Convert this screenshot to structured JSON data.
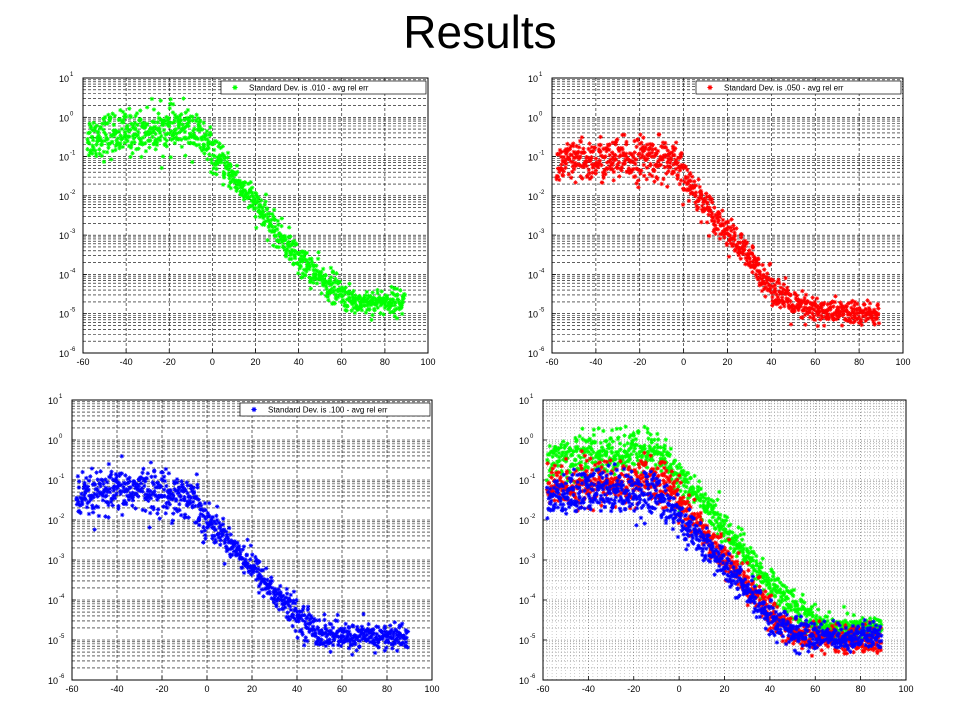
{
  "slide": {
    "title": "Results"
  },
  "chart_data": [
    {
      "type": "scatter",
      "xlim": [
        -60,
        100
      ],
      "ylim": [
        1e-06,
        10
      ],
      "y_scale": "log",
      "x_ticks": [
        -60,
        -40,
        -20,
        0,
        20,
        40,
        60,
        80,
        100
      ],
      "y_ticks": [
        "10^1",
        "10^0",
        "10^-1",
        "10^-2",
        "10^-3",
        "10^-4",
        "10^-5",
        "10^-6"
      ],
      "grid": "dashed-minor",
      "legend_position": "top-right",
      "marker": "*",
      "series": [
        {
          "name": "Standard Dev. is .010 - avg rel err",
          "color": "#00ff00",
          "x": [
            -58,
            -50,
            -40,
            -30,
            -20,
            -10,
            -5,
            0,
            10,
            20,
            30,
            40,
            50,
            60,
            65,
            70,
            80,
            89
          ],
          "y": [
            0.3,
            0.35,
            0.4,
            0.45,
            0.5,
            0.5,
            0.3,
            0.12,
            0.03,
            0.006,
            0.0012,
            0.00025,
            8e-05,
            3e-05,
            2e-05,
            2e-05,
            2e-05,
            2e-05
          ]
        }
      ]
    },
    {
      "type": "scatter",
      "xlim": [
        -60,
        100
      ],
      "ylim": [
        1e-06,
        10
      ],
      "y_scale": "log",
      "x_ticks": [
        -60,
        -40,
        -20,
        0,
        20,
        40,
        60,
        80,
        100
      ],
      "y_ticks": [
        "10^1",
        "10^0",
        "10^-1",
        "10^-2",
        "10^-3",
        "10^-4",
        "10^-5",
        "10^-6"
      ],
      "grid": "dashed-minor",
      "legend_position": "top-right",
      "marker": "*",
      "series": [
        {
          "name": "Standard Dev. is .050 - avg rel err",
          "color": "#ff0000",
          "x": [
            -58,
            -50,
            -40,
            -30,
            -20,
            -10,
            -5,
            0,
            10,
            20,
            30,
            40,
            50,
            60,
            70,
            80,
            89
          ],
          "y": [
            0.06,
            0.07,
            0.08,
            0.08,
            0.09,
            0.09,
            0.07,
            0.03,
            0.006,
            0.0012,
            0.00025,
            5e-05,
            1.5e-05,
            1.2e-05,
            1.1e-05,
            1e-05,
            1e-05
          ]
        }
      ]
    },
    {
      "type": "scatter",
      "xlim": [
        -60,
        100
      ],
      "ylim": [
        1e-06,
        10
      ],
      "y_scale": "log",
      "x_ticks": [
        -60,
        -40,
        -20,
        0,
        20,
        40,
        60,
        80,
        100
      ],
      "y_ticks": [
        "10^1",
        "10^0",
        "10^-1",
        "10^-2",
        "10^-3",
        "10^-4",
        "10^-5",
        "10^-6"
      ],
      "grid": "dashed-minor",
      "legend_position": "top-right",
      "marker": "*",
      "series": [
        {
          "name": "Standard Dev. is .100 - avg rel err",
          "color": "#0000ff",
          "x": [
            -58,
            -50,
            -40,
            -30,
            -20,
            -10,
            -5,
            0,
            10,
            20,
            30,
            40,
            50,
            60,
            70,
            80,
            89
          ],
          "y": [
            0.03,
            0.04,
            0.05,
            0.06,
            0.05,
            0.04,
            0.03,
            0.01,
            0.003,
            0.0007,
            0.00015,
            4e-05,
            1.5e-05,
            1.2e-05,
            1.2e-05,
            1.2e-05,
            1.2e-05
          ]
        }
      ]
    },
    {
      "type": "scatter",
      "xlim": [
        -60,
        100
      ],
      "ylim": [
        1e-06,
        10
      ],
      "y_scale": "log",
      "x_ticks": [
        -60,
        -40,
        -20,
        0,
        20,
        40,
        60,
        80,
        100
      ],
      "y_ticks": [
        "10^1",
        "10^0",
        "10^-1",
        "10^-2",
        "10^-3",
        "10^-4",
        "10^-5",
        "10^-6"
      ],
      "grid": "dotted-minor",
      "legend_position": "none",
      "marker": "*",
      "series": [
        {
          "name": "",
          "color": "#00ff00",
          "x": [
            -58,
            -50,
            -40,
            -30,
            -20,
            -10,
            -5,
            0,
            10,
            20,
            30,
            40,
            50,
            60,
            65,
            70,
            80,
            89
          ],
          "y": [
            0.3,
            0.35,
            0.4,
            0.45,
            0.5,
            0.5,
            0.3,
            0.12,
            0.03,
            0.006,
            0.0012,
            0.00025,
            8e-05,
            3e-05,
            2e-05,
            2e-05,
            2e-05,
            2e-05
          ]
        },
        {
          "name": "",
          "color": "#ff0000",
          "x": [
            -58,
            -50,
            -40,
            -30,
            -20,
            -10,
            -5,
            0,
            10,
            20,
            30,
            40,
            50,
            60,
            70,
            80,
            89
          ],
          "y": [
            0.06,
            0.07,
            0.08,
            0.08,
            0.09,
            0.09,
            0.07,
            0.03,
            0.006,
            0.0012,
            0.00025,
            5e-05,
            1.5e-05,
            1.2e-05,
            1.1e-05,
            1e-05,
            1e-05
          ]
        },
        {
          "name": "",
          "color": "#0000ff",
          "x": [
            -58,
            -50,
            -40,
            -30,
            -20,
            -10,
            -5,
            0,
            10,
            20,
            30,
            40,
            50,
            60,
            70,
            80,
            89
          ],
          "y": [
            0.03,
            0.04,
            0.05,
            0.06,
            0.05,
            0.04,
            0.03,
            0.01,
            0.003,
            0.0007,
            0.00015,
            4e-05,
            1.5e-05,
            1.2e-05,
            1.2e-05,
            1.2e-05,
            1.2e-05
          ]
        }
      ]
    }
  ]
}
